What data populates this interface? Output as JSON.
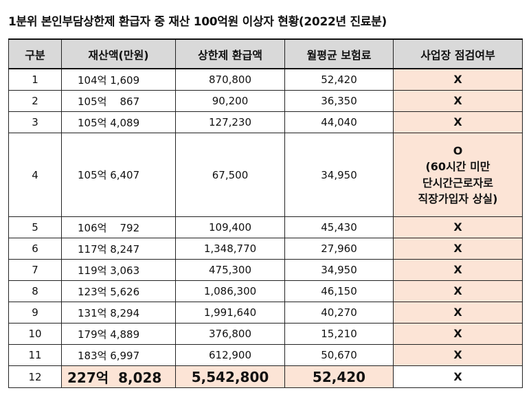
{
  "title": "1분위 본인부담상한제 환급자 중 재산 100억원 이상자 현황(2022년 진료분)",
  "table": {
    "headers": [
      "구분",
      "재산액(만원)",
      "상한제 환급액",
      "월평균 보험료",
      "사업장 점검여부"
    ],
    "rows": [
      {
        "no": "1",
        "asset": "104억 1,609",
        "refund": "870,800",
        "premium": "52,420",
        "check": [
          "X"
        ]
      },
      {
        "no": "2",
        "asset": "105억    867",
        "refund": "90,200",
        "premium": "36,350",
        "check": [
          "X"
        ]
      },
      {
        "no": "3",
        "asset": "105억 4,089",
        "refund": "127,230",
        "premium": "44,040",
        "check": [
          "X"
        ]
      },
      {
        "no": "4",
        "asset": "105억 6,407",
        "refund": "67,500",
        "premium": "34,950",
        "check": [
          "O",
          "(60시간 미만",
          "단시간근로자로",
          "직장가입자 상실)"
        ]
      },
      {
        "no": "5",
        "asset": "106억    792",
        "refund": "109,400",
        "premium": "45,430",
        "check": [
          "X"
        ]
      },
      {
        "no": "6",
        "asset": "117억 8,247",
        "refund": "1,348,770",
        "premium": "27,960",
        "check": [
          "X"
        ]
      },
      {
        "no": "7",
        "asset": "119억 3,063",
        "refund": "475,300",
        "premium": "34,950",
        "check": [
          "X"
        ]
      },
      {
        "no": "8",
        "asset": "123억 5,626",
        "refund": "1,086,300",
        "premium": "46,150",
        "check": [
          "X"
        ]
      },
      {
        "no": "9",
        "asset": "131억 8,294",
        "refund": "1,991,640",
        "premium": "40,270",
        "check": [
          "X"
        ]
      },
      {
        "no": "10",
        "asset": "179억 4,889",
        "refund": "376,800",
        "premium": "15,210",
        "check": [
          "X"
        ]
      },
      {
        "no": "11",
        "asset": "183억 6,997",
        "refund": "612,900",
        "premium": "50,670",
        "check": [
          "X"
        ]
      },
      {
        "no": "12",
        "asset": "227억  8,028",
        "refund": "5,542,800",
        "premium": "52,420",
        "check": [
          "X"
        ]
      }
    ]
  },
  "colors": {
    "header_bg": "#d9d9d9",
    "highlight_bg": "#fce4d6",
    "border": "#222222"
  }
}
